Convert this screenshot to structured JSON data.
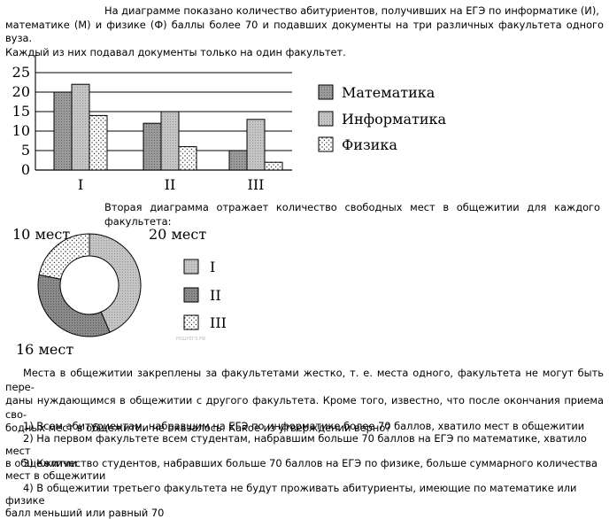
{
  "intro": {
    "line1": "На диаграмме показано количество абитуриентов, получивших на ЕГЭ по информатике (И),",
    "line2": "математике (М) и физике (Ф) баллы более 70 и подавших документы на три различных факультета одного вуза.",
    "line3": "Каждый из них подавал документы только на один факультет."
  },
  "second_caption": "Вторая диаграмма отражает количество свободных мест в общежитии для каждого факультета:",
  "body_text": {
    "line1": "Места в общежитии закреплены за факультетами жестко, т. е. места одного, факультета не могут быть пере-",
    "line2": "даны нуждающимся в общежитии с другого факультета. Кроме того, известно, что после окончания приема сво-",
    "line3": "бодных мест в общежитии не оказалось. Какое из утверждений верно?"
  },
  "options": [
    {
      "line1": "1) Всем абитуриентам, набравшим на ЕГЭ по информатике более 70 баллов, хватило мест в общежитии",
      "line2": ""
    },
    {
      "line1": "2) На первом факультете всем студентам, набравшим больше 70 баллов на ЕГЭ по математике, хватило мест",
      "line2": "в общежитии"
    },
    {
      "line1": "3) Количество студентов, набравших больше 70 баллов на ЕГЭ по физике, больше суммарного количества",
      "line2": "мест в общежитии"
    },
    {
      "line1": "4) В общежитии третьего факультета не будут проживать абитуриенты, имеющие по математике или физике",
      "line2": "балл меньший или равный 70"
    }
  ],
  "watermark": "РЕШУЕГЭ.РФ",
  "chart_data": [
    {
      "type": "bar",
      "categories": [
        "I",
        "II",
        "III"
      ],
      "series": [
        {
          "name": "Математика",
          "values": [
            20,
            12,
            5
          ],
          "color": "#9a9a9a"
        },
        {
          "name": "Информатика",
          "values": [
            22,
            15,
            13
          ],
          "color": "#c4c4c4"
        },
        {
          "name": "Физика",
          "values": [
            14,
            6,
            2
          ],
          "color": "#ffffff"
        }
      ],
      "yticks": [
        "0",
        "5",
        "10",
        "15",
        "20",
        "25"
      ],
      "ylim": [
        0,
        30
      ],
      "grid": true,
      "legend": "right"
    },
    {
      "type": "pie",
      "donut": true,
      "slices": [
        {
          "label": "I",
          "value": 20,
          "text": "20 мест",
          "color": "#c4c4c4"
        },
        {
          "label": "II",
          "value": 16,
          "text": "16 мест",
          "color": "#8a8a8a"
        },
        {
          "label": "III",
          "value": 10,
          "text": "10 мест",
          "color": "#ffffff"
        }
      ],
      "legend": "right"
    }
  ]
}
